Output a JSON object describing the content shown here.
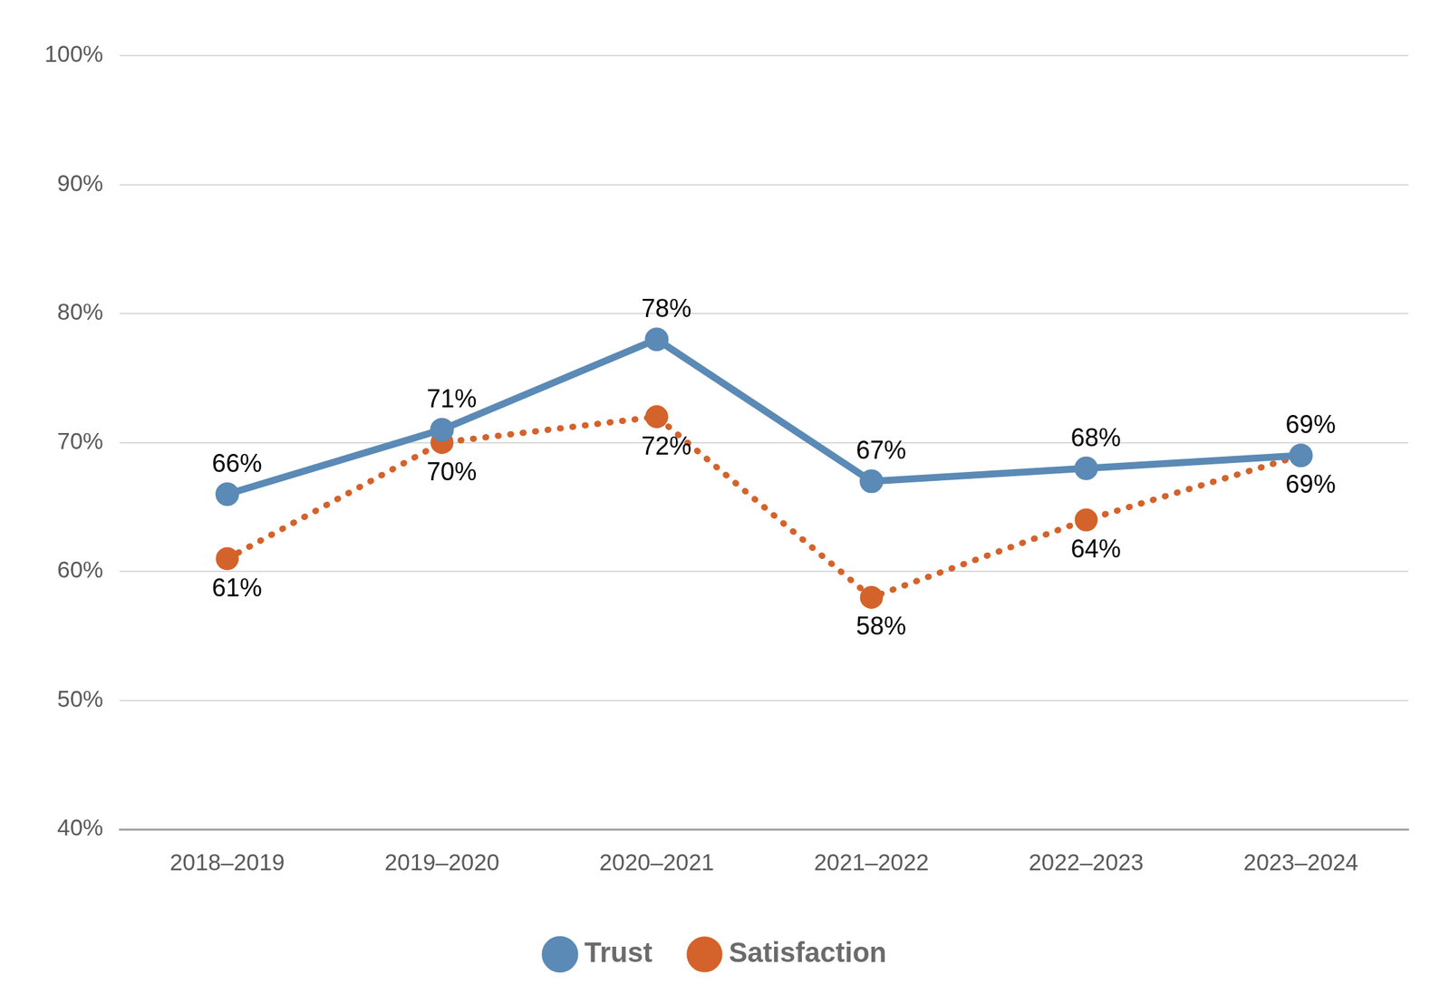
{
  "chart_data": {
    "type": "line",
    "categories": [
      "2018–2019",
      "2019–2020",
      "2020–2021",
      "2021–2022",
      "2022–2023",
      "2023–2024"
    ],
    "series": [
      {
        "name": "Trust",
        "color": "#5a8ab5",
        "marker": "circle",
        "line_style": "solid",
        "values": [
          66,
          71,
          78,
          67,
          68,
          69
        ],
        "value_labels": [
          "66%",
          "71%",
          "78%",
          "67%",
          "68%",
          "69%"
        ]
      },
      {
        "name": "Satisfaction",
        "color": "#d4622b",
        "marker": "circle",
        "line_style": "dotted",
        "values": [
          61,
          70,
          72,
          58,
          64,
          69
        ],
        "value_labels": [
          "61%",
          "70%",
          "72%",
          "58%",
          "64%",
          "69%"
        ]
      }
    ],
    "ylim": [
      40,
      100
    ],
    "yticks": [
      {
        "value": 40,
        "label": "40%"
      },
      {
        "value": 50,
        "label": "50%"
      },
      {
        "value": 60,
        "label": "60%"
      },
      {
        "value": 70,
        "label": "70%"
      },
      {
        "value": 80,
        "label": "80%"
      },
      {
        "value": 90,
        "label": "90%"
      },
      {
        "value": 100,
        "label": "100%"
      }
    ],
    "grid": true,
    "legend": "bottom",
    "data_labels": true
  }
}
